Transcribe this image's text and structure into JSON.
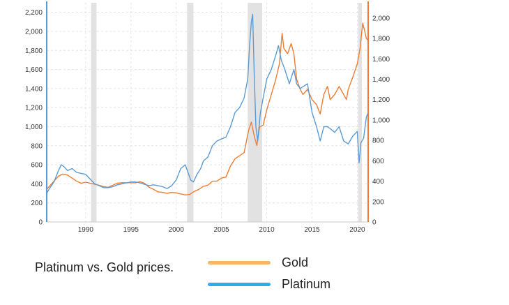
{
  "chart_data": {
    "type": "line",
    "title": "Platinum vs. Gold prices.",
    "xlabel": "",
    "ylabel": "",
    "xlim": [
      1985.7,
      2021.2
    ],
    "x_ticks": [
      "1990",
      "1995",
      "2000",
      "2005",
      "2010",
      "2015",
      "2020"
    ],
    "y_left": {
      "series": "Platinum",
      "lim": [
        0,
        2300
      ],
      "ticks": [
        "0",
        "200",
        "400",
        "600",
        "800",
        "1,000",
        "1,200",
        "1,400",
        "1,600",
        "1,800",
        "2,000",
        "2,200"
      ]
    },
    "y_right": {
      "series": "Gold",
      "lim": [
        0,
        2150
      ],
      "ticks": [
        "0",
        "200",
        "400",
        "600",
        "800",
        "1,000",
        "1,200",
        "1,400",
        "1,600",
        "1,800",
        "2,000"
      ]
    },
    "recession_bands": [
      [
        1990.6,
        1991.2
      ],
      [
        2001.2,
        2001.9
      ],
      [
        2007.9,
        2009.5
      ],
      [
        2020.1,
        2020.5
      ]
    ],
    "grid": true,
    "colors": {
      "gold": "#ee7d33",
      "platinum": "#5b9bd5",
      "gold_legend": "#f5b766",
      "platinum_legend": "#35a9ea",
      "band": "#e2e2e2"
    },
    "series": [
      {
        "name": "Platinum",
        "axis": "left",
        "points": [
          [
            1985.7,
            300
          ],
          [
            1986.0,
            350
          ],
          [
            1986.5,
            420
          ],
          [
            1987.0,
            540
          ],
          [
            1987.3,
            600
          ],
          [
            1987.6,
            580
          ],
          [
            1988.0,
            540
          ],
          [
            1988.5,
            560
          ],
          [
            1989.0,
            520
          ],
          [
            1989.5,
            510
          ],
          [
            1990.0,
            500
          ],
          [
            1990.5,
            450
          ],
          [
            1991.0,
            400
          ],
          [
            1991.5,
            380
          ],
          [
            1992.0,
            360
          ],
          [
            1992.5,
            360
          ],
          [
            1993.0,
            370
          ],
          [
            1993.5,
            390
          ],
          [
            1994.0,
            400
          ],
          [
            1994.5,
            410
          ],
          [
            1995.0,
            420
          ],
          [
            1995.5,
            420
          ],
          [
            1996.0,
            410
          ],
          [
            1996.5,
            395
          ],
          [
            1997.0,
            380
          ],
          [
            1997.5,
            390
          ],
          [
            1998.0,
            380
          ],
          [
            1998.5,
            370
          ],
          [
            1999.0,
            350
          ],
          [
            1999.5,
            380
          ],
          [
            2000.0,
            440
          ],
          [
            2000.5,
            560
          ],
          [
            2001.0,
            600
          ],
          [
            2001.3,
            520
          ],
          [
            2001.6,
            440
          ],
          [
            2001.9,
            420
          ],
          [
            2002.3,
            500
          ],
          [
            2002.7,
            560
          ],
          [
            2003.0,
            640
          ],
          [
            2003.5,
            680
          ],
          [
            2004.0,
            800
          ],
          [
            2004.5,
            850
          ],
          [
            2005.0,
            870
          ],
          [
            2005.5,
            890
          ],
          [
            2006.0,
            1000
          ],
          [
            2006.5,
            1150
          ],
          [
            2007.0,
            1200
          ],
          [
            2007.5,
            1300
          ],
          [
            2007.9,
            1500
          ],
          [
            2008.1,
            1850
          ],
          [
            2008.3,
            2100
          ],
          [
            2008.45,
            2180
          ],
          [
            2008.6,
            1600
          ],
          [
            2008.8,
            1000
          ],
          [
            2009.0,
            850
          ],
          [
            2009.3,
            1150
          ],
          [
            2009.6,
            1300
          ],
          [
            2010.0,
            1500
          ],
          [
            2010.5,
            1600
          ],
          [
            2011.0,
            1750
          ],
          [
            2011.3,
            1850
          ],
          [
            2011.6,
            1700
          ],
          [
            2012.0,
            1600
          ],
          [
            2012.5,
            1450
          ],
          [
            2013.0,
            1600
          ],
          [
            2013.3,
            1450
          ],
          [
            2013.7,
            1400
          ],
          [
            2014.0,
            1420
          ],
          [
            2014.5,
            1450
          ],
          [
            2015.0,
            1150
          ],
          [
            2015.5,
            1000
          ],
          [
            2015.9,
            850
          ],
          [
            2016.3,
            1000
          ],
          [
            2016.7,
            1000
          ],
          [
            2017.0,
            980
          ],
          [
            2017.5,
            940
          ],
          [
            2018.0,
            1000
          ],
          [
            2018.5,
            850
          ],
          [
            2019.0,
            820
          ],
          [
            2019.5,
            900
          ],
          [
            2020.0,
            950
          ],
          [
            2020.2,
            620
          ],
          [
            2020.4,
            830
          ],
          [
            2020.7,
            880
          ],
          [
            2021.0,
            1100
          ],
          [
            2021.2,
            1150
          ]
        ]
      },
      {
        "name": "Gold",
        "axis": "right",
        "points": [
          [
            1985.7,
            320
          ],
          [
            1986.0,
            350
          ],
          [
            1986.5,
            400
          ],
          [
            1987.0,
            450
          ],
          [
            1987.5,
            470
          ],
          [
            1988.0,
            460
          ],
          [
            1988.5,
            430
          ],
          [
            1989.0,
            400
          ],
          [
            1989.5,
            380
          ],
          [
            1990.0,
            390
          ],
          [
            1990.5,
            380
          ],
          [
            1991.0,
            370
          ],
          [
            1991.5,
            360
          ],
          [
            1992.0,
            345
          ],
          [
            1992.5,
            340
          ],
          [
            1993.0,
            360
          ],
          [
            1993.5,
            380
          ],
          [
            1994.0,
            385
          ],
          [
            1994.5,
            385
          ],
          [
            1995.0,
            385
          ],
          [
            1995.5,
            385
          ],
          [
            1996.0,
            395
          ],
          [
            1996.5,
            380
          ],
          [
            1997.0,
            340
          ],
          [
            1997.5,
            320
          ],
          [
            1998.0,
            295
          ],
          [
            1998.5,
            290
          ],
          [
            1999.0,
            280
          ],
          [
            1999.5,
            290
          ],
          [
            2000.0,
            285
          ],
          [
            2000.5,
            275
          ],
          [
            2001.0,
            265
          ],
          [
            2001.5,
            270
          ],
          [
            2002.0,
            300
          ],
          [
            2002.5,
            320
          ],
          [
            2003.0,
            350
          ],
          [
            2003.5,
            360
          ],
          [
            2004.0,
            400
          ],
          [
            2004.5,
            400
          ],
          [
            2005.0,
            430
          ],
          [
            2005.5,
            440
          ],
          [
            2006.0,
            550
          ],
          [
            2006.5,
            620
          ],
          [
            2007.0,
            650
          ],
          [
            2007.5,
            680
          ],
          [
            2008.0,
            900
          ],
          [
            2008.3,
            980
          ],
          [
            2008.6,
            850
          ],
          [
            2008.9,
            750
          ],
          [
            2009.2,
            930
          ],
          [
            2009.6,
            950
          ],
          [
            2010.0,
            1100
          ],
          [
            2010.5,
            1250
          ],
          [
            2011.0,
            1400
          ],
          [
            2011.4,
            1550
          ],
          [
            2011.7,
            1850
          ],
          [
            2011.9,
            1700
          ],
          [
            2012.3,
            1650
          ],
          [
            2012.7,
            1750
          ],
          [
            2013.0,
            1650
          ],
          [
            2013.3,
            1400
          ],
          [
            2013.7,
            1300
          ],
          [
            2014.0,
            1250
          ],
          [
            2014.5,
            1300
          ],
          [
            2015.0,
            1200
          ],
          [
            2015.5,
            1150
          ],
          [
            2015.9,
            1060
          ],
          [
            2016.3,
            1250
          ],
          [
            2016.7,
            1330
          ],
          [
            2017.0,
            1200
          ],
          [
            2017.5,
            1250
          ],
          [
            2018.0,
            1330
          ],
          [
            2018.5,
            1250
          ],
          [
            2018.8,
            1200
          ],
          [
            2019.0,
            1300
          ],
          [
            2019.5,
            1420
          ],
          [
            2020.0,
            1550
          ],
          [
            2020.3,
            1700
          ],
          [
            2020.6,
            1950
          ],
          [
            2020.8,
            1880
          ],
          [
            2021.0,
            1800
          ],
          [
            2021.2,
            1780
          ]
        ]
      }
    ]
  },
  "legend": {
    "title": "Platinum vs. Gold prices.",
    "items": [
      {
        "label": "Gold",
        "color": "#f5b766"
      },
      {
        "label": "Platinum",
        "color": "#35a9ea"
      }
    ]
  }
}
